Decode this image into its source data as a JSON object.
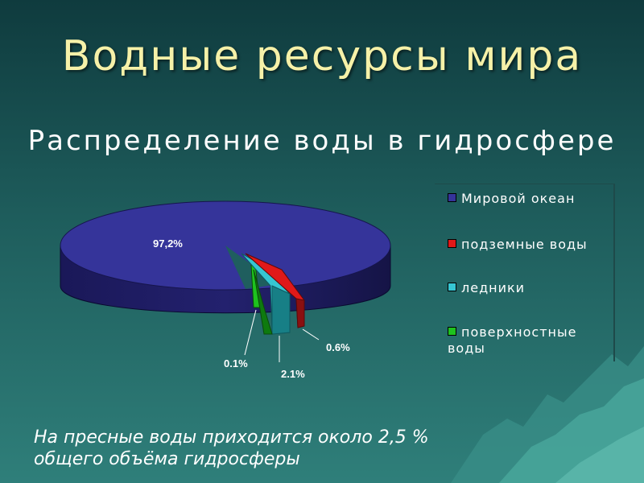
{
  "title": "Водные ресурсы мира",
  "subtitle": "Распределение воды в гидросфере",
  "footnote": {
    "line1": "На пресные воды приходится около 2,5 %",
    "line2": "общего объёма гидросферы"
  },
  "chart_data": {
    "type": "pie",
    "title": "",
    "legend_position": "right",
    "series": [
      {
        "name": "",
        "slices": [
          {
            "label": "Мировой океан",
            "value": 97.2,
            "data_label": "97,2%",
            "color": "#35349a"
          },
          {
            "label": "подземные воды",
            "value": 0.6,
            "data_label": "0.6%",
            "color": "#e01919"
          },
          {
            "label": "ледники",
            "value": 2.1,
            "data_label": "2.1%",
            "color": "#36c6d2"
          },
          {
            "label": "поверхностные воды",
            "value": 0.1,
            "data_label": "0.1%",
            "color": "#1ec21e"
          }
        ]
      }
    ]
  }
}
